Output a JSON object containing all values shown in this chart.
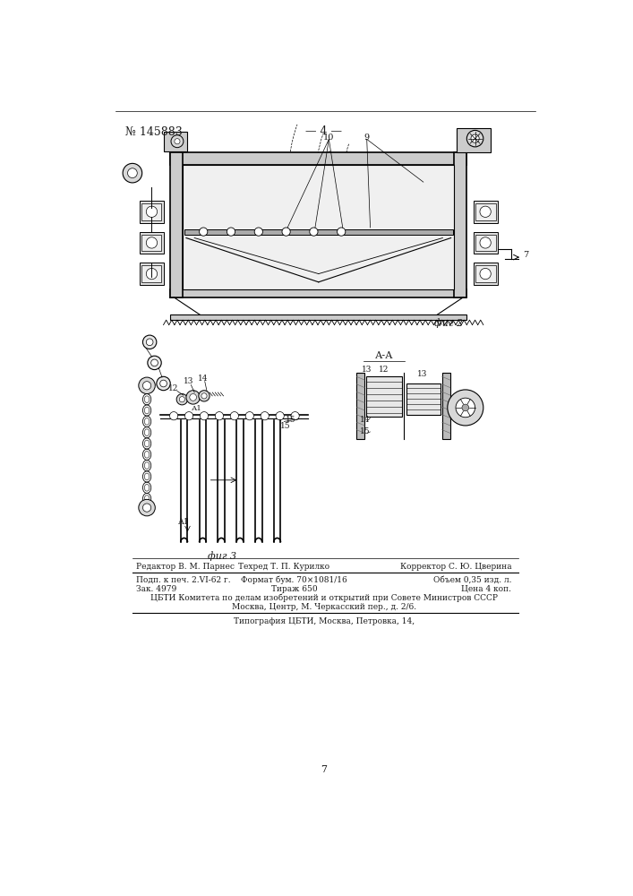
{
  "page_number_left": "№ 145883",
  "page_number_center": "— 4 —",
  "fig2_label": "фиг 2",
  "fig3_label": "фиг 3",
  "section_label": "А-А",
  "page_num_bottom": "7",
  "footer_line1_col1": "Редактор В. М. Парнес",
  "footer_line1_col2": "Техред Т. П. Курилко",
  "footer_line1_col3": "Корректор С. Ю. Цверина",
  "footer_line2_col1": "Подп. к печ. 2.VI-62 г.",
  "footer_line2_col2": "Формат бум. 70×1081/16",
  "footer_line2_col3": "Объем 0,35 изд. л.",
  "footer_line3_col1": "Зак. 4979",
  "footer_line3_col2": "Тираж 650",
  "footer_line3_col3": "Цена 4 коп.",
  "footer_line4": "ЦБТИ Комитета по делам изобретений и открытий при Совете Министров СССР",
  "footer_line5": "Москва, Центр, М. Черкасский пер., д. 2/6.",
  "footer_line6": "Типография ЦБТИ, Москва, Петровка, 14,",
  "bg_color": "#ffffff",
  "line_color": "#000000",
  "text_color": "#1a1a1a"
}
